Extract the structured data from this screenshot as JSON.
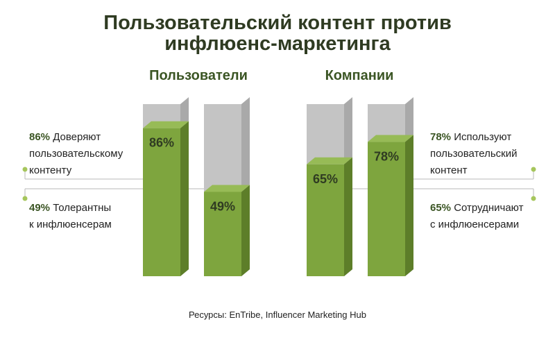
{
  "title_lines": [
    "Пользовательский контент против",
    "инфлюенс-маркетинга"
  ],
  "colors": {
    "bar_green": "#7ea53e",
    "bar_green_side": "#5d7e29",
    "bar_green_top": "#97bb56",
    "bar_gray": "#c4c4c4",
    "bar_gray_side": "#a9a9a9",
    "bar_gray_top": "#d6d6d6",
    "text_dark_green": "#3b5524",
    "connector": "#b9b9b9",
    "dot": "#a6c65c"
  },
  "annotations": {
    "users_trust_pct": "86%",
    "users_trust_text_1": "Доверяют",
    "users_trust_text_2": "пользовательскому",
    "users_trust_text_3": "контенту",
    "users_tolerant_pct": "49%",
    "users_tolerant_text_1": "Толерантны",
    "users_tolerant_text_2": "к инфлюенсерам",
    "companies_use_pct": "78%",
    "companies_use_text_1": "Используют",
    "companies_use_text_2": "пользовательский",
    "companies_use_text_3": "контент",
    "companies_collab_pct": "65%",
    "companies_collab_text_1": "Сотрудничают",
    "companies_collab_text_2": "с инфлюенсерами"
  },
  "source": "Ресурсы: EnTribe, Influencer Marketing Hub",
  "chart_data": {
    "type": "bar",
    "groups": [
      "Пользователи",
      "Компании"
    ],
    "ylim": [
      0,
      100
    ],
    "bars": [
      {
        "group": "Пользователи",
        "value": 86,
        "label": "86%"
      },
      {
        "group": "Пользователи",
        "value": 49,
        "label": "49%"
      },
      {
        "group": "Компании",
        "value": 65,
        "label": "65%"
      },
      {
        "group": "Компании",
        "value": 78,
        "label": "78%"
      }
    ]
  }
}
